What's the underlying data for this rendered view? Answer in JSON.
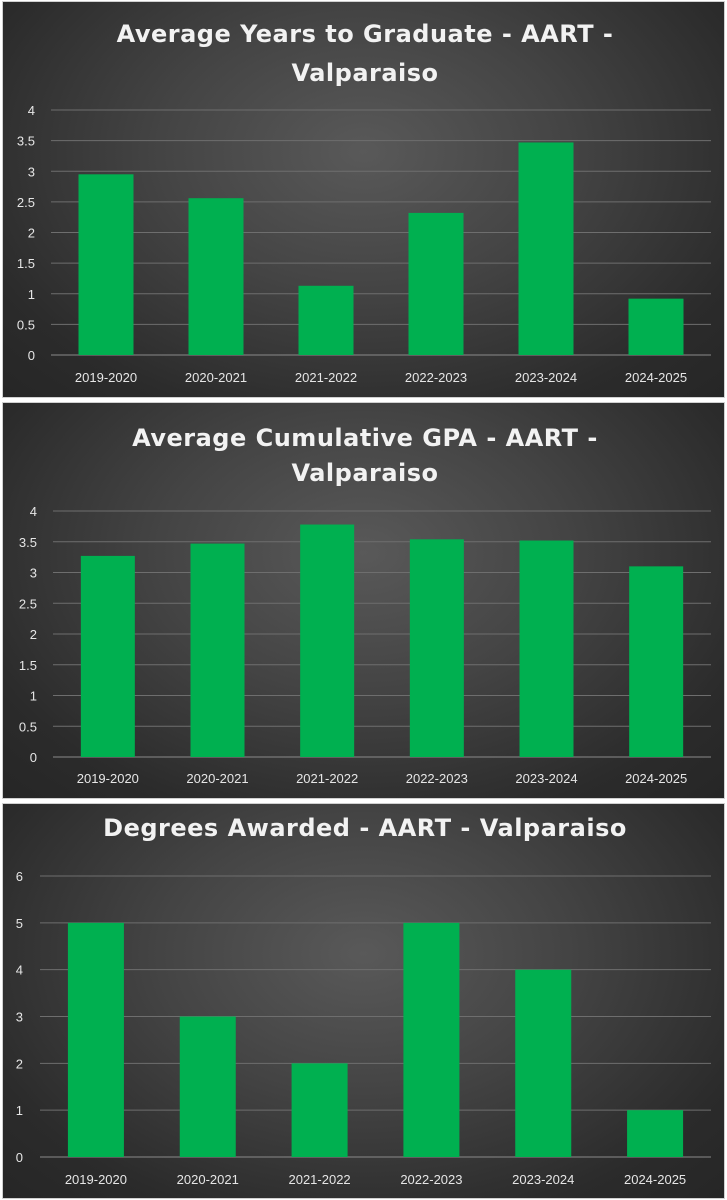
{
  "chart_data": [
    {
      "type": "bar",
      "title_lines": [
        "Average Years to Graduate - AART -",
        "Valparaiso"
      ],
      "categories": [
        "2019-2020",
        "2020-2021",
        "2021-2022",
        "2022-2023",
        "2023-2024",
        "2024-2025"
      ],
      "values": [
        2.95,
        2.56,
        1.13,
        2.32,
        3.47,
        0.92
      ],
      "ylim": [
        0,
        4
      ],
      "yticks": [
        "0",
        "0.5",
        "1",
        "1.5",
        "2",
        "2.5",
        "3",
        "3.5",
        "4"
      ],
      "bar_color": "#00b050",
      "grid": true,
      "legend": "none"
    },
    {
      "type": "bar",
      "title_lines": [
        "Average Cumulative GPA - AART -",
        "Valparaiso"
      ],
      "categories": [
        "2019-2020",
        "2020-2021",
        "2021-2022",
        "2022-2023",
        "2023-2024",
        "2024-2025"
      ],
      "values": [
        3.27,
        3.47,
        3.78,
        3.54,
        3.52,
        3.1
      ],
      "ylim": [
        0,
        4
      ],
      "yticks": [
        "0",
        "0.5",
        "1",
        "1.5",
        "2",
        "2.5",
        "3",
        "3.5",
        "4"
      ],
      "bar_color": "#00b050",
      "grid": true,
      "legend": "none"
    },
    {
      "type": "bar",
      "title_lines": [
        "Degrees Awarded - AART - Valparaiso"
      ],
      "categories": [
        "2019-2020",
        "2020-2021",
        "2021-2022",
        "2022-2023",
        "2023-2024",
        "2024-2025"
      ],
      "values": [
        5,
        3,
        2,
        5,
        4,
        1
      ],
      "ylim": [
        0,
        6
      ],
      "yticks": [
        "0",
        "1",
        "2",
        "3",
        "4",
        "5",
        "6"
      ],
      "bar_color": "#00b050",
      "grid": true,
      "legend": "none"
    }
  ]
}
